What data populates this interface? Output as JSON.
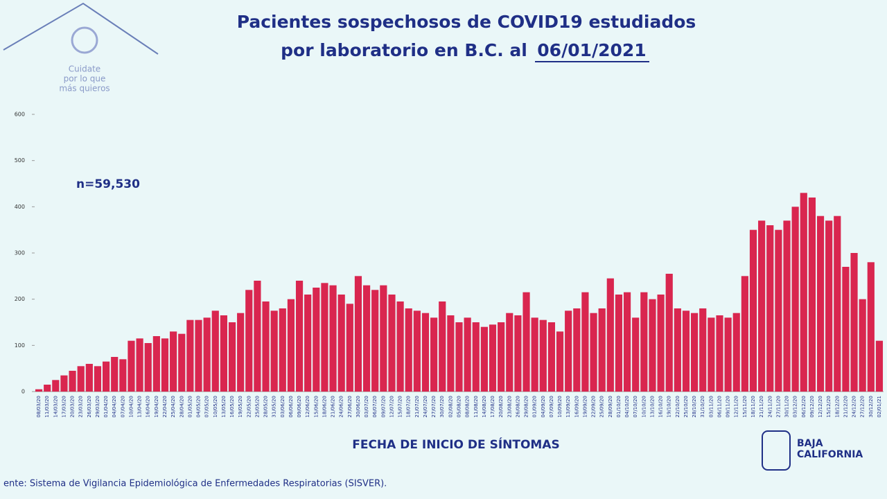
{
  "logo": {
    "tagline_1": "Cuidate",
    "tagline_2": "por lo que",
    "tagline_3": "más quieros"
  },
  "chart_data": {
    "type": "bar",
    "title_line1": "Pacientes sospechosos de COVID19 estudiados",
    "title_line2": "por laboratorio en B.C. al",
    "title_date": "06/01/2021",
    "annotation": "n=59,530",
    "x_label": "FECHA DE INICIO DE SÍNTOMAS",
    "color": "#d9264f",
    "ylim": [
      0,
      600
    ],
    "yticks": [
      0,
      100,
      200,
      300,
      400,
      500,
      600
    ],
    "categories": [
      "08/03/20",
      "11/03/20",
      "14/03/20",
      "17/03/20",
      "20/03/20",
      "23/03/20",
      "26/03/20",
      "29/03/20",
      "01/04/20",
      "04/04/20",
      "07/04/20",
      "10/04/20",
      "13/04/20",
      "16/04/20",
      "19/04/20",
      "22/04/20",
      "25/04/20",
      "28/04/20",
      "01/05/20",
      "04/05/20",
      "07/05/20",
      "10/05/20",
      "13/05/20",
      "16/05/20",
      "19/05/20",
      "22/05/20",
      "25/05/20",
      "28/05/20",
      "31/05/20",
      "03/06/20",
      "06/06/20",
      "09/06/20",
      "12/06/20",
      "15/06/20",
      "18/06/20",
      "21/06/20",
      "24/06/20",
      "27/06/20",
      "30/06/20",
      "03/07/20",
      "06/07/20",
      "09/07/20",
      "12/07/20",
      "15/07/20",
      "18/07/20",
      "21/07/20",
      "24/07/20",
      "27/07/20",
      "30/07/20",
      "02/08/20",
      "05/08/20",
      "08/08/20",
      "11/08/20",
      "14/08/20",
      "17/08/20",
      "20/08/20",
      "23/08/20",
      "26/08/20",
      "29/08/20",
      "01/09/20",
      "04/09/20",
      "07/09/20",
      "10/09/20",
      "13/09/20",
      "16/09/20",
      "19/09/20",
      "22/09/20",
      "25/09/20",
      "28/09/20",
      "01/10/20",
      "04/10/20",
      "07/10/20",
      "10/10/20",
      "13/10/20",
      "16/10/20",
      "19/10/20",
      "22/10/20",
      "25/10/20",
      "28/10/20",
      "31/10/20",
      "03/11/20",
      "06/11/20",
      "09/11/20",
      "12/11/20",
      "15/11/20",
      "18/11/20",
      "21/11/20",
      "24/11/20",
      "27/11/20",
      "30/11/20",
      "03/12/20",
      "06/12/20",
      "09/12/20",
      "12/12/20",
      "15/12/20",
      "18/12/20",
      "21/12/20",
      "24/12/20",
      "27/12/20",
      "30/12/20",
      "02/01/21"
    ],
    "values": [
      5,
      15,
      25,
      35,
      45,
      55,
      60,
      55,
      65,
      75,
      70,
      110,
      115,
      105,
      120,
      115,
      130,
      125,
      155,
      155,
      160,
      175,
      165,
      150,
      170,
      220,
      240,
      195,
      175,
      180,
      200,
      240,
      210,
      225,
      235,
      230,
      210,
      190,
      250,
      230,
      220,
      230,
      210,
      195,
      180,
      175,
      170,
      160,
      195,
      165,
      150,
      160,
      150,
      140,
      145,
      150,
      170,
      165,
      215,
      160,
      155,
      150,
      130,
      175,
      180,
      215,
      170,
      180,
      245,
      210,
      215,
      160,
      215,
      200,
      210,
      255,
      180,
      175,
      170,
      180,
      160,
      165,
      160,
      170,
      250,
      350,
      370,
      360,
      350,
      370,
      400,
      430,
      420,
      380,
      370,
      380,
      270,
      300,
      200,
      280,
      110
    ]
  },
  "footer": {
    "source": "ente: Sistema de Vigilancia Epidemiológica de Enfermedades Respiratorias (SISVER).",
    "brand_1": "BAJA",
    "brand_2": "CALIFORNIA"
  }
}
